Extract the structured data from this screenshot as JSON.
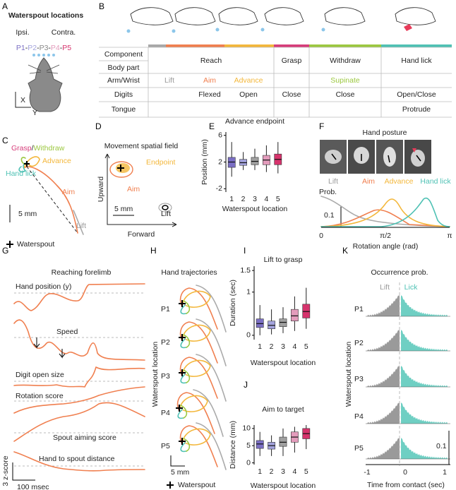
{
  "panel_labels": {
    "a": "A",
    "b": "B",
    "c": "C",
    "d": "D",
    "e": "E",
    "f": "F",
    "g": "G",
    "h": "H",
    "i": "I",
    "j": "J",
    "k": "K"
  },
  "panel_a": {
    "title": "Waterspout locations",
    "ipsi": "Ipsi.",
    "contra": "Contra.",
    "locations": [
      "P1",
      "P2",
      "P3",
      "P4",
      "P5"
    ],
    "separator": "-",
    "axis_x": "X",
    "axis_y": "Y"
  },
  "table": {
    "header": {
      "component": "Component",
      "body_part": "Body part"
    },
    "components": {
      "reach": "Reach",
      "grasp": "Grasp",
      "withdraw": "Withdraw",
      "hand_lick": "Hand lick"
    },
    "arm_wrist": {
      "label": "Arm/Wrist",
      "lift": "Lift",
      "aim": "Aim",
      "advance": "Advance",
      "withdraw": "Supinate"
    },
    "digits": {
      "label": "Digits",
      "aim": "Flexed",
      "advance": "Open",
      "grasp": "Close",
      "withdraw": "Close",
      "hand_lick": "Open/Close"
    },
    "tongue": {
      "label": "Tongue",
      "hand_lick": "Protrude"
    }
  },
  "panel_c": {
    "grasp": "Grasp",
    "separator": "/",
    "withdraw": "Withdraw",
    "advance": "Advance",
    "hand_lick": "Hand lick",
    "aim": "Aim",
    "lift": "Lift",
    "scale": "5 mm",
    "waterspout": "Waterspout"
  },
  "panel_d": {
    "title": "Movement spatial field",
    "endpoint": "Endpoint",
    "aim": "Aim",
    "lift": "Lift",
    "scale": "5 mm",
    "ylabel": "Upward",
    "xlabel": "Forward"
  },
  "panel_f": {
    "title": "Hand posture",
    "legend": [
      "Lift",
      "Aim",
      "Advance",
      "Hand lick"
    ],
    "ylabel": "Prob.",
    "scale": "0.1",
    "xticks": [
      "0",
      "π/2",
      "π"
    ],
    "xlabel": "Rotation angle (rad)"
  },
  "panel_g": {
    "title": "Reaching forelimb",
    "traces": [
      "Hand position (y)",
      "Speed",
      "Digit open size",
      "Rotation score",
      "Spout aiming score",
      "Hand to spout distance"
    ],
    "yscale": "3 z-score",
    "xscale": "100 msec"
  },
  "panel_h": {
    "title": "Hand trajectories",
    "ylabel": "Waterspout location",
    "locations": [
      "P1",
      "P2",
      "P3",
      "P4",
      "P5"
    ],
    "scale": "5 mm",
    "waterspout": "Waterspout"
  },
  "panel_k": {
    "title": "Occurrence prob.",
    "lift": "Lift",
    "lick": "Lick",
    "ylabel": "Waterspout location",
    "locations": [
      "P1",
      "P2",
      "P3",
      "P4",
      "P5"
    ],
    "scale": "0.1",
    "xticks": [
      -1,
      0,
      1
    ],
    "xlabel": "Time from contact (sec)"
  },
  "chart_data": [
    {
      "type": "box",
      "title": "Advance endpoint",
      "ylabel": "Position (mm)",
      "xlabel": "Waterspout location",
      "categories": [
        "1",
        "2",
        "3",
        "4",
        "5"
      ],
      "colors": [
        "#7b6fc4",
        "#a3a3dc",
        "#a0a0a0",
        "#e39cbc",
        "#d6336c"
      ],
      "whisker_low": [
        -0.2,
        0.8,
        0.8,
        0.5,
        0.3
      ],
      "q1": [
        1.2,
        1.5,
        1.6,
        1.6,
        1.6
      ],
      "median": [
        2.0,
        1.9,
        2.1,
        2.3,
        2.4
      ],
      "q3": [
        2.7,
        2.4,
        2.7,
        3.0,
        3.2
      ],
      "whisker_high": [
        5,
        3.5,
        4,
        4.5,
        5
      ],
      "ylim": [
        -2.5,
        6.5
      ],
      "yticks": [
        -2,
        2,
        6
      ]
    },
    {
      "type": "box",
      "title": "Lift to grasp",
      "ylabel": "Duration (sec)",
      "xlabel": "Waterspout location",
      "categories": [
        "1",
        "2",
        "3",
        "4",
        "5"
      ],
      "colors": [
        "#7b6fc4",
        "#a3a3dc",
        "#a0a0a0",
        "#e39cbc",
        "#d6336c"
      ],
      "whisker_low": [
        0,
        0.02,
        0.05,
        0.1,
        0.15
      ],
      "q1": [
        0.18,
        0.15,
        0.2,
        0.33,
        0.4
      ],
      "median": [
        0.27,
        0.23,
        0.3,
        0.45,
        0.55
      ],
      "q3": [
        0.38,
        0.33,
        0.38,
        0.6,
        0.72
      ],
      "whisker_high": [
        0.7,
        0.6,
        0.65,
        0.9,
        1.1
      ],
      "ylim": [
        -0.1,
        1.6
      ],
      "yticks": [
        0,
        1,
        1.5
      ]
    },
    {
      "type": "box",
      "title": "Aim to target",
      "ylabel": "Distance (mm)",
      "xlabel": "Waterspout location",
      "categories": [
        "1",
        "2",
        "3",
        "4",
        "5"
      ],
      "colors": [
        "#7b6fc4",
        "#a3a3dc",
        "#a0a0a0",
        "#e39cbc",
        "#d6336c"
      ],
      "whisker_low": [
        2,
        2,
        2,
        3,
        4
      ],
      "q1": [
        4.2,
        4,
        4.8,
        6,
        7
      ],
      "median": [
        5.5,
        5,
        6,
        7.5,
        8.5
      ],
      "q3": [
        6.5,
        6,
        7.5,
        9,
        10
      ],
      "whisker_high": [
        9,
        8,
        10,
        10.5,
        11
      ],
      "ylim": [
        -0.5,
        11
      ],
      "yticks": [
        0,
        5,
        10
      ]
    }
  ]
}
